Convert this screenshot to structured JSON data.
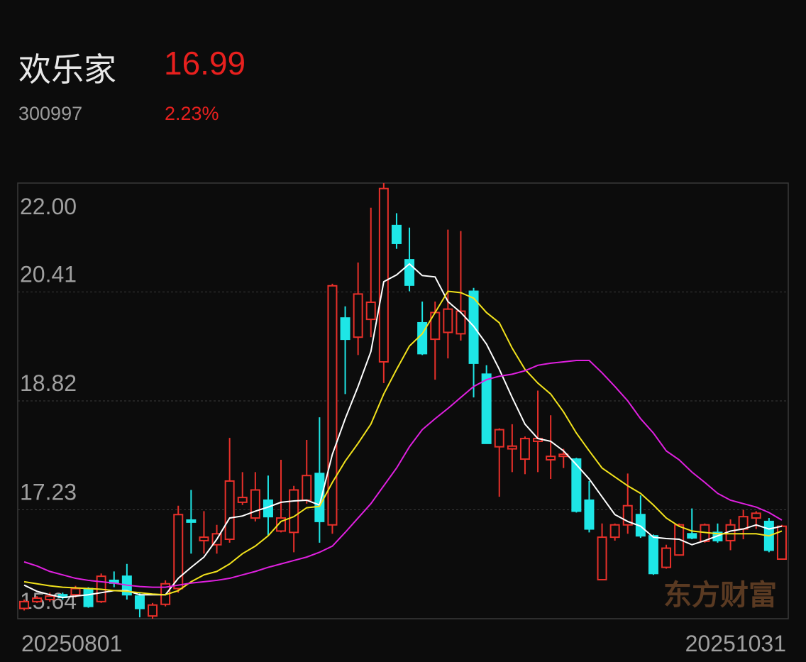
{
  "header": {
    "name": "欢乐家",
    "price": "16.99",
    "code": "300997",
    "change": "2.23%"
  },
  "chart_data": {
    "type": "candlestick",
    "watermark": "东方财富",
    "categories": [
      "20250801",
      null,
      null,
      null,
      null,
      null,
      null,
      null,
      null,
      null,
      null,
      null,
      null,
      null,
      null,
      null,
      null,
      null,
      null,
      null,
      null,
      null,
      null,
      null,
      null,
      null,
      null,
      null,
      null,
      null,
      null,
      null,
      null,
      null,
      null,
      null,
      null,
      null,
      null,
      null,
      null,
      null,
      null,
      null,
      null,
      null,
      null,
      null,
      null,
      null,
      null,
      null,
      null,
      null,
      null,
      null,
      null,
      null,
      null,
      "20251031"
    ],
    "open": [
      15.79,
      15.89,
      15.92,
      15.99,
      15.99,
      16.08,
      15.89,
      16.2,
      16.26,
      15.97,
      15.68,
      15.85,
      16.08,
      17.08,
      16.78,
      16.72,
      16.8,
      17.34,
      17.11,
      17.37,
      16.92,
      16.9,
      17.37,
      17.76,
      17.01,
      20.03,
      19.75,
      20.01,
      19.39,
      21.38,
      20.88,
      19.96,
      19.72,
      19.82,
      19.8,
      20.42,
      19.21,
      18.15,
      18.12,
      17.97,
      18.23,
      17.96,
      18.01,
      17.97,
      17.37,
      16.21,
      16.83,
      17.01,
      17.16,
      16.85,
      16.39,
      16.57,
      16.88,
      16.77,
      16.9,
      16.78,
      16.95,
      17.11,
      17.06,
      16.51
    ],
    "high": [
      15.92,
      15.97,
      16.02,
      16.02,
      16.12,
      16.1,
      16.3,
      16.33,
      16.44,
      16.02,
      15.87,
      16.2,
      17.29,
      17.52,
      17.21,
      17.01,
      18.28,
      17.78,
      17.78,
      17.73,
      17.96,
      17.58,
      18.25,
      18.58,
      20.53,
      20.2,
      20.84,
      21.64,
      22.0,
      21.56,
      21.35,
      20.27,
      20.27,
      21.32,
      21.3,
      20.47,
      19.34,
      18.42,
      18.48,
      18.3,
      18.97,
      18.61,
      18.12,
      17.99,
      17.65,
      17.03,
      17.03,
      17.76,
      17.44,
      16.87,
      16.72,
      17.03,
      17.25,
      17.03,
      17.03,
      17.09,
      17.23,
      17.21,
      17.11,
      17.01
    ],
    "low": [
      15.76,
      15.87,
      15.89,
      15.92,
      15.95,
      15.8,
      15.87,
      16.1,
      15.92,
      15.66,
      15.64,
      15.82,
      16.02,
      16.59,
      16.59,
      16.59,
      16.75,
      17.3,
      17.06,
      16.85,
      16.9,
      16.61,
      17.32,
      16.75,
      16.88,
      18.92,
      19.49,
      19.75,
      19.08,
      21.04,
      20.42,
      19.49,
      19.13,
      19.44,
      19.7,
      18.87,
      18.2,
      17.42,
      17.78,
      17.75,
      17.78,
      17.68,
      17.84,
      17.19,
      16.9,
      16.21,
      16.78,
      16.88,
      16.82,
      16.28,
      16.37,
      16.56,
      16.8,
      16.75,
      16.75,
      16.64,
      16.8,
      16.95,
      16.61,
      16.51
    ],
    "close": [
      15.89,
      15.94,
      15.97,
      15.95,
      16.08,
      15.82,
      16.26,
      16.16,
      15.99,
      15.79,
      15.84,
      16.15,
      17.16,
      17.05,
      16.83,
      16.88,
      17.65,
      17.41,
      17.52,
      17.13,
      17.11,
      17.52,
      17.73,
      17.06,
      20.5,
      19.72,
      20.38,
      20.26,
      21.92,
      21.12,
      20.51,
      19.51,
      20.11,
      20.16,
      20.13,
      19.37,
      18.2,
      18.4,
      18.16,
      18.27,
      18.27,
      18.01,
      18.04,
      17.21,
      16.95,
      16.83,
      17.01,
      17.29,
      16.85,
      16.3,
      16.67,
      17.01,
      16.82,
      17.01,
      16.78,
      17.01,
      17.13,
      17.18,
      16.64,
      16.99
    ],
    "up_color": "#e8302a",
    "down_color": "#1ee6e6",
    "lines": [
      {
        "color": "#ffffff",
        "values": [
          16.13,
          16.04,
          15.99,
          15.95,
          15.97,
          15.99,
          16.02,
          16.05,
          16.05,
          15.99,
          15.99,
          15.99,
          16.23,
          16.39,
          16.54,
          16.8,
          17.11,
          17.14,
          17.21,
          17.27,
          17.34,
          17.36,
          17.37,
          17.3,
          18.04,
          18.56,
          19.03,
          19.54,
          20.56,
          20.66,
          20.82,
          20.65,
          20.63,
          20.27,
          20.11,
          19.91,
          19.65,
          19.28,
          18.87,
          18.48,
          18.27,
          18.23,
          18.09,
          17.89,
          17.68,
          17.42,
          17.16,
          17.06,
          16.99,
          16.83,
          16.81,
          16.8,
          16.72,
          16.78,
          16.85,
          16.92,
          16.95,
          17.01,
          16.95,
          16.99
        ]
      },
      {
        "color": "#f2e21c",
        "values": [
          16.18,
          16.15,
          16.12,
          16.1,
          16.09,
          16.08,
          16.07,
          16.05,
          16.04,
          16.02,
          16.0,
          15.99,
          16.05,
          16.18,
          16.28,
          16.33,
          16.44,
          16.59,
          16.7,
          16.85,
          17.06,
          17.13,
          17.26,
          17.28,
          17.63,
          17.94,
          18.2,
          18.48,
          18.92,
          19.28,
          19.62,
          19.8,
          20.11,
          20.42,
          20.4,
          20.32,
          20.11,
          19.96,
          19.59,
          19.28,
          19.08,
          18.92,
          18.66,
          18.35,
          18.09,
          17.84,
          17.71,
          17.58,
          17.47,
          17.3,
          17.11,
          16.99,
          16.92,
          16.9,
          16.88,
          16.88,
          16.88,
          16.88,
          16.85,
          16.92
        ]
      },
      {
        "color": "#e020e0",
        "values": [
          16.47,
          16.41,
          16.33,
          16.28,
          16.23,
          16.2,
          16.18,
          16.16,
          16.13,
          16.11,
          16.1,
          16.1,
          16.13,
          16.16,
          16.18,
          16.2,
          16.23,
          16.28,
          16.33,
          16.39,
          16.44,
          16.49,
          16.54,
          16.61,
          16.7,
          16.9,
          17.11,
          17.32,
          17.58,
          17.84,
          18.15,
          18.4,
          18.56,
          18.71,
          18.87,
          19.03,
          19.13,
          19.18,
          19.21,
          19.26,
          19.34,
          19.37,
          19.39,
          19.41,
          19.41,
          19.23,
          19.03,
          18.82,
          18.56,
          18.35,
          18.09,
          17.96,
          17.78,
          17.63,
          17.47,
          17.37,
          17.32,
          17.27,
          17.19,
          17.08
        ]
      }
    ],
    "ylim": [
      15.64,
      22.0
    ],
    "yticks": [
      15.64,
      17.23,
      18.82,
      20.41,
      {
        "value": 22.0,
        "label": "22.00"
      }
    ],
    "grid": true
  }
}
